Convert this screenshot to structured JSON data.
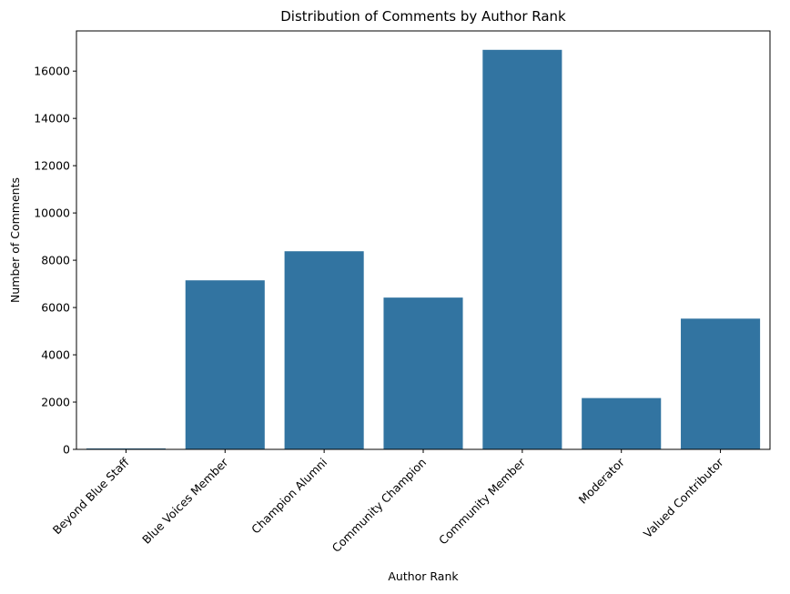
{
  "chart_data": {
    "type": "bar",
    "title": "Distribution of Comments by Author Rank",
    "xlabel": "Author Rank",
    "ylabel": "Number of Comments",
    "categories": [
      "Beyond Blue Staff",
      "Blue Voices Member",
      "Champion Alumni",
      "Community Champion",
      "Community Member",
      "Moderator",
      "Valued Contributor"
    ],
    "values": [
      40,
      7150,
      8380,
      6420,
      16900,
      2170,
      5530
    ],
    "ylim": [
      0,
      17700
    ],
    "yticks": [
      0,
      2000,
      4000,
      6000,
      8000,
      10000,
      12000,
      14000,
      16000
    ],
    "ytick_labels": [
      "0",
      "2000",
      "4000",
      "6000",
      "8000",
      "10000",
      "12000",
      "14000",
      "16000"
    ],
    "bar_color": "#3274a1",
    "grid": false
  }
}
